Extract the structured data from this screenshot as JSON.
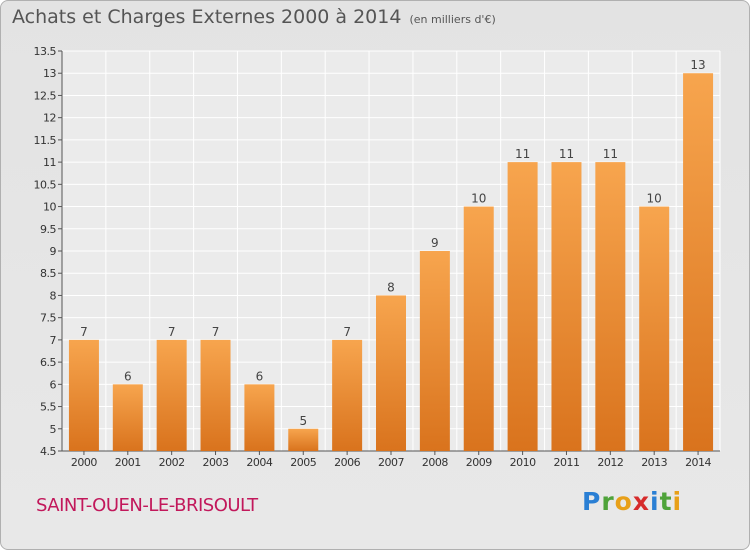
{
  "title": "Achats et Charges Externes 2000 à 2014",
  "subtitle": "(en milliers d'€)",
  "city": "SAINT-OUEN-LE-BRISOULT",
  "logo_text": "Proxiti",
  "colors": {
    "bar_light": "#f7a54e",
    "bar_dark": "#d9731d",
    "city": "#c2185b"
  },
  "chart_data": {
    "type": "bar",
    "title": "Achats et Charges Externes 2000 à 2014",
    "subtitle": "(en milliers d'€)",
    "xlabel": "",
    "ylabel": "",
    "categories": [
      "2000",
      "2001",
      "2002",
      "2003",
      "2004",
      "2005",
      "2006",
      "2007",
      "2008",
      "2009",
      "2010",
      "2011",
      "2012",
      "2013",
      "2014"
    ],
    "values": [
      7,
      6,
      7,
      7,
      6,
      5,
      7,
      8,
      9,
      10,
      11,
      11,
      11,
      10,
      13
    ],
    "data_labels": [
      "7",
      "6",
      "7",
      "7",
      "6",
      "5",
      "7",
      "8",
      "9",
      "10",
      "11",
      "11",
      "11",
      "10",
      "13"
    ],
    "ylim": [
      4.5,
      13.5
    ],
    "yticks": [
      4.5,
      5,
      5.5,
      6,
      6.5,
      7,
      7.5,
      8,
      8.5,
      9,
      9.5,
      10,
      10.5,
      11,
      11.5,
      12,
      12.5,
      13,
      13.5
    ],
    "ytick_labels": [
      "4.5",
      "5",
      "5.5",
      "6",
      "6.5",
      "7",
      "7.5",
      "8",
      "8.5",
      "9",
      "9.5",
      "10",
      "10.5",
      "11",
      "11.5",
      "12",
      "12.5",
      "13",
      "13.5"
    ],
    "grid": true,
    "legend": "none"
  }
}
